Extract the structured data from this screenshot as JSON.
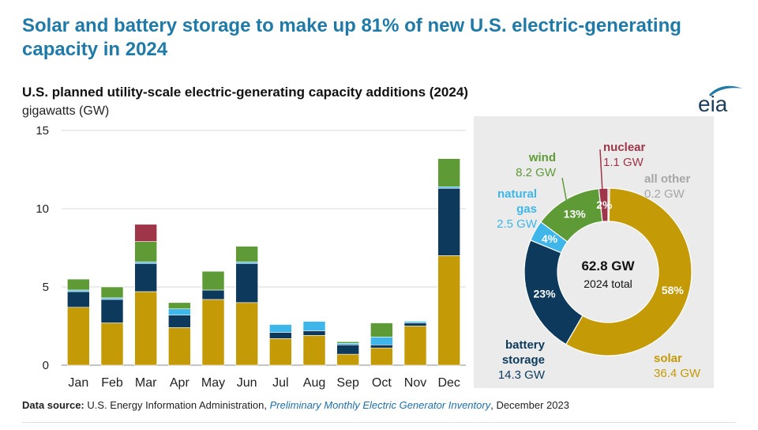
{
  "headline": "Solar and battery storage to make up 81% of new U.S. electric-generating capacity in 2024",
  "logo_text": "eia",
  "source": {
    "prefix": "Data source:",
    "agency": "U.S. Energy Information Administration,",
    "publication": "Preliminary Monthly Electric Generator Inventory",
    "date": ", December 2023"
  },
  "colors": {
    "solar": "#c49a06",
    "battery": "#0d3a5c",
    "natural_gas": "#3fb6ea",
    "wind": "#5e9b37",
    "nuclear": "#9e3548",
    "all_other": "#a6a6a6"
  },
  "chart_data": [
    {
      "type": "bar",
      "stacked": true,
      "title": "U.S. planned utility-scale electric-generating capacity additions (2024)",
      "ylabel": "gigawatts (GW)",
      "ylim": [
        0,
        15
      ],
      "yticks": [
        0,
        5,
        10,
        15
      ],
      "grid": true,
      "categories": [
        "Jan",
        "Feb",
        "Mar",
        "Apr",
        "May",
        "Jun",
        "Jul",
        "Aug",
        "Sep",
        "Oct",
        "Nov",
        "Dec"
      ],
      "series": [
        {
          "key": "solar",
          "values": [
            3.7,
            2.7,
            4.7,
            2.4,
            4.2,
            4.0,
            1.7,
            1.9,
            0.7,
            1.1,
            2.5,
            7.0
          ]
        },
        {
          "key": "battery",
          "values": [
            1.0,
            1.5,
            1.8,
            0.8,
            0.6,
            2.5,
            0.4,
            0.3,
            0.6,
            0.2,
            0.2,
            4.3
          ]
        },
        {
          "key": "natural_gas",
          "values": [
            0.1,
            0.1,
            0.1,
            0.4,
            0.0,
            0.1,
            0.5,
            0.6,
            0.1,
            0.5,
            0.1,
            0.1
          ]
        },
        {
          "key": "wind",
          "values": [
            0.7,
            0.7,
            1.3,
            0.4,
            1.2,
            1.0,
            0.0,
            0.0,
            0.1,
            0.9,
            0.0,
            1.8
          ]
        },
        {
          "key": "nuclear",
          "values": [
            0,
            0,
            1.1,
            0,
            0,
            0,
            0,
            0,
            0,
            0,
            0,
            0
          ]
        }
      ]
    },
    {
      "type": "pie",
      "donut": true,
      "center_value": "62.8 GW",
      "center_label": "2024 total",
      "slices": [
        {
          "key": "solar",
          "name": "solar",
          "value_label": "36.4 GW",
          "value": 36.4,
          "percent": "58%"
        },
        {
          "key": "battery",
          "name": "battery storage",
          "value_label": "14.3 GW",
          "value": 14.3,
          "percent": "23%"
        },
        {
          "key": "natural_gas",
          "name": "natural gas",
          "value_label": "2.5 GW",
          "value": 2.5,
          "percent": "4%"
        },
        {
          "key": "wind",
          "name": "wind",
          "value_label": "8.2 GW",
          "value": 8.2,
          "percent": "13%"
        },
        {
          "key": "nuclear",
          "name": "nuclear",
          "value_label": "1.1 GW",
          "value": 1.1,
          "percent": "2%"
        },
        {
          "key": "all_other",
          "name": "all other",
          "value_label": "0.2 GW",
          "value": 0.2,
          "percent": ""
        }
      ]
    }
  ]
}
